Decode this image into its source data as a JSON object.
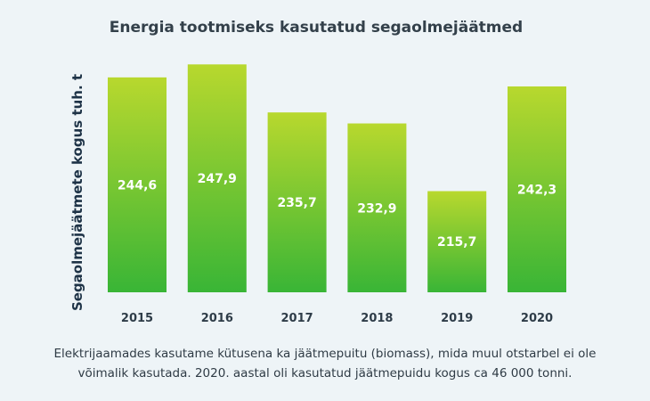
{
  "chart_data": {
    "type": "bar",
    "title": "Energia tootmiseks kasutatud segaolmejäätmed",
    "ylabel": "Segaolmejäätmete kogus tuh. t",
    "xlabel": "",
    "categories": [
      "2015",
      "2016",
      "2017",
      "2018",
      "2019",
      "2020"
    ],
    "values": [
      244.6,
      247.9,
      235.7,
      232.9,
      215.7,
      242.3
    ],
    "value_labels": [
      "244,6",
      "247,9",
      "235,7",
      "232,9",
      "215,7",
      "242,3"
    ],
    "ylim": [
      190,
      250
    ],
    "grid": false,
    "legend": "none",
    "colors": {
      "bar_top": "#b8d82e",
      "bar_bottom": "#39b536"
    }
  },
  "caption": "Elektrijaamades kasutame kütusena ka jäätmepuitu (biomass), mida muul otstarbel ei ole võimalik kasutada. 2020. aastal oli kasutatud jäätmepuidu kogus ca 46 000 tonni."
}
